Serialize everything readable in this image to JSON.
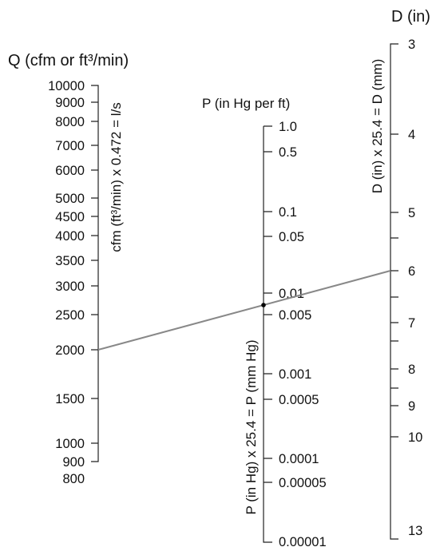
{
  "q_axis": {
    "title": "Q (cfm or ft³/min)",
    "note": "cfm (ft³/min) x 0.472 = l/s",
    "ticks": [
      "10000",
      "9000",
      "8000",
      "7000",
      "6000",
      "5000",
      "4500",
      "4000",
      "3500",
      "3000",
      "2500",
      "2000",
      "1500",
      "1000",
      "900",
      "800"
    ]
  },
  "p_axis": {
    "title": "P (in Hg per ft)",
    "note": "P (in Hg) x 25.4 = P (mm Hg)",
    "ticks": [
      "1.0",
      "0.5",
      "0.1",
      "0.05",
      "0.01",
      "0.005",
      "0.001",
      "0.0005",
      "0.0001",
      "0.00005",
      "0.00001"
    ]
  },
  "d_axis": {
    "title": "D (in)",
    "note": "D (in) x 25.4 = D (mm)",
    "ticks": [
      "3",
      "4",
      "5",
      "6",
      "7",
      "8",
      "9",
      "10",
      "13"
    ]
  },
  "example_line": {
    "color": "#888888",
    "q_value": "2000",
    "d_value": "6"
  }
}
